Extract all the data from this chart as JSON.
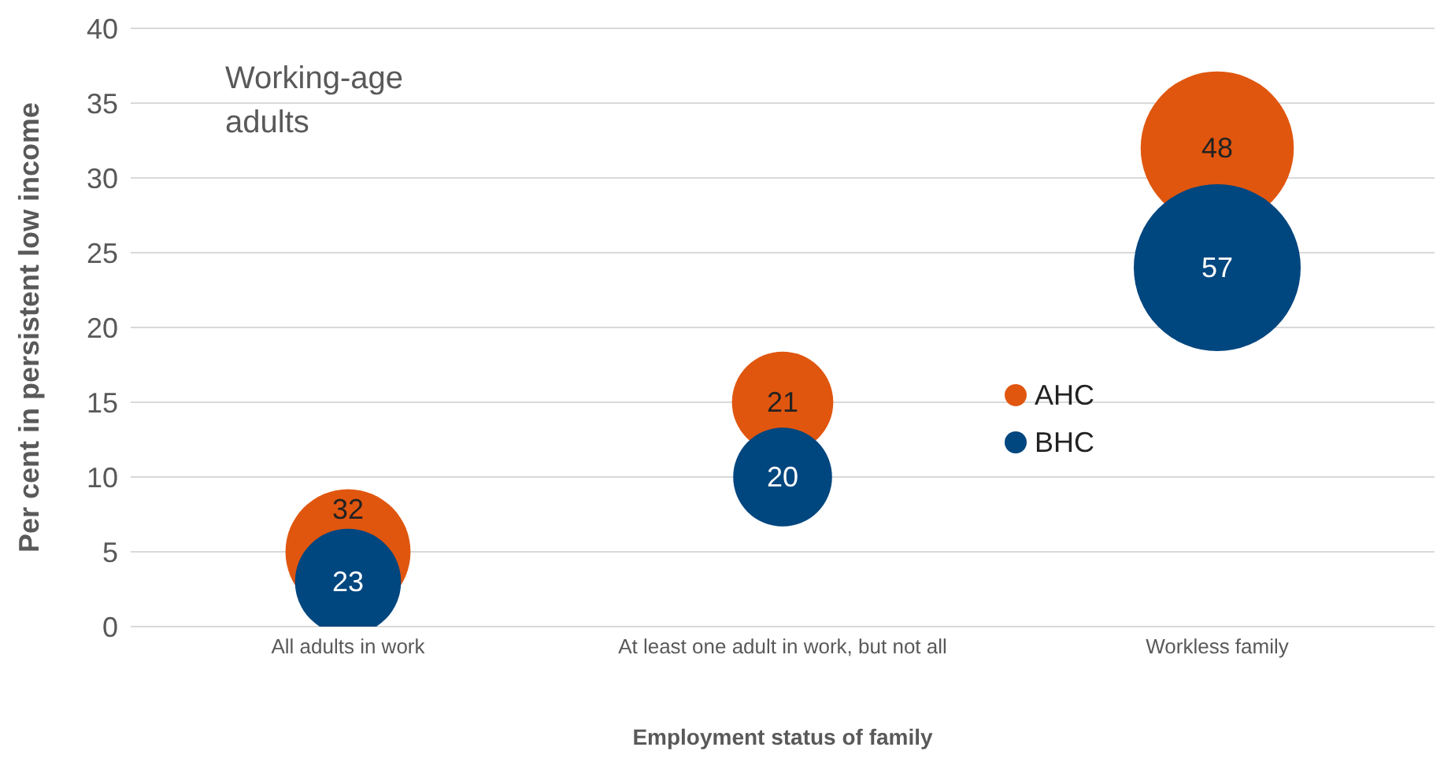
{
  "chart_data": {
    "type": "bubble",
    "title": "Working-age adults",
    "xlabel": "Employment status of family",
    "ylabel": "Per cent in persistent low income",
    "categories": [
      "All adults in work",
      "At least one adult in work, but not all",
      "Workless family"
    ],
    "series": [
      {
        "name": "AHC",
        "color": "#e0560f",
        "values": [
          5,
          15,
          32
        ],
        "sizes": [
          32,
          21,
          48
        ],
        "value_labels": [
          "32",
          "21",
          "48"
        ]
      },
      {
        "name": "BHC",
        "color": "#00467f",
        "values": [
          3,
          10,
          24
        ],
        "sizes": [
          23,
          20,
          57
        ],
        "value_labels": [
          "23",
          "20",
          "57"
        ]
      }
    ],
    "ylim": [
      0,
      40
    ],
    "yticks": [
      0,
      5,
      10,
      15,
      20,
      25,
      30,
      35,
      40
    ],
    "grid": "y",
    "legend": "right",
    "marker": "circle"
  }
}
